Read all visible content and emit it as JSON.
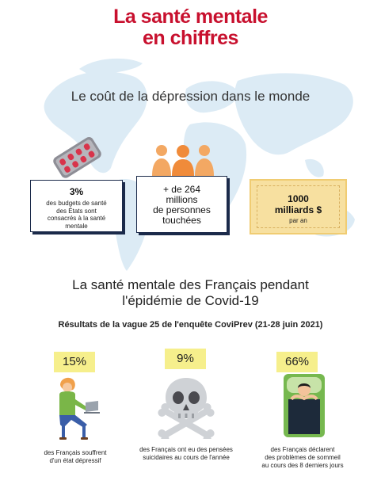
{
  "header": {
    "title_line1": "La santé mentale",
    "title_line2": "en chiffres"
  },
  "section1": {
    "heading": "Le coût de la dépression dans le monde",
    "stats": [
      {
        "value": "3%",
        "desc_lines": [
          "des budgets de santé",
          "des États sont",
          "consacrés à la santé",
          "mentale"
        ]
      },
      {
        "value": "+ de 264",
        "desc_lines": [
          "millions",
          "de personnes",
          "touchées"
        ]
      },
      {
        "value": "1000",
        "value_line2": "milliards $",
        "desc": "par an"
      }
    ]
  },
  "section2": {
    "heading_line1": "La santé mentale des Français pendant",
    "heading_line2": "l'épidémie de Covid-19",
    "survey": "Résultats de la vague 25 de l'enquête CoviPrev (21-28 juin 2021)",
    "results": [
      {
        "percent": "15%",
        "caption_lines": [
          "des Français souffrent",
          "d'un état dépressif"
        ]
      },
      {
        "percent": "9%",
        "caption_lines": [
          "des Français ont eu des pensées",
          "suicidaires au cours de l'année"
        ]
      },
      {
        "percent": "66%",
        "caption_lines": [
          "des Français déclarent",
          "des problèmes de sommeil",
          "au cours des 8 derniers jours"
        ]
      }
    ]
  },
  "colors": {
    "title_red": "#c8102e",
    "highlight_yellow": "#f6ef8c",
    "map_blue": "#dcebf5",
    "bill_yellow": "#f7e0a0",
    "box_navy": "#1b2a4a"
  },
  "icons": [
    "world-map",
    "pill-blister-icon",
    "people-group-icon",
    "person-laptop-icon",
    "skull-crossbones-icon",
    "person-bed-icon"
  ]
}
